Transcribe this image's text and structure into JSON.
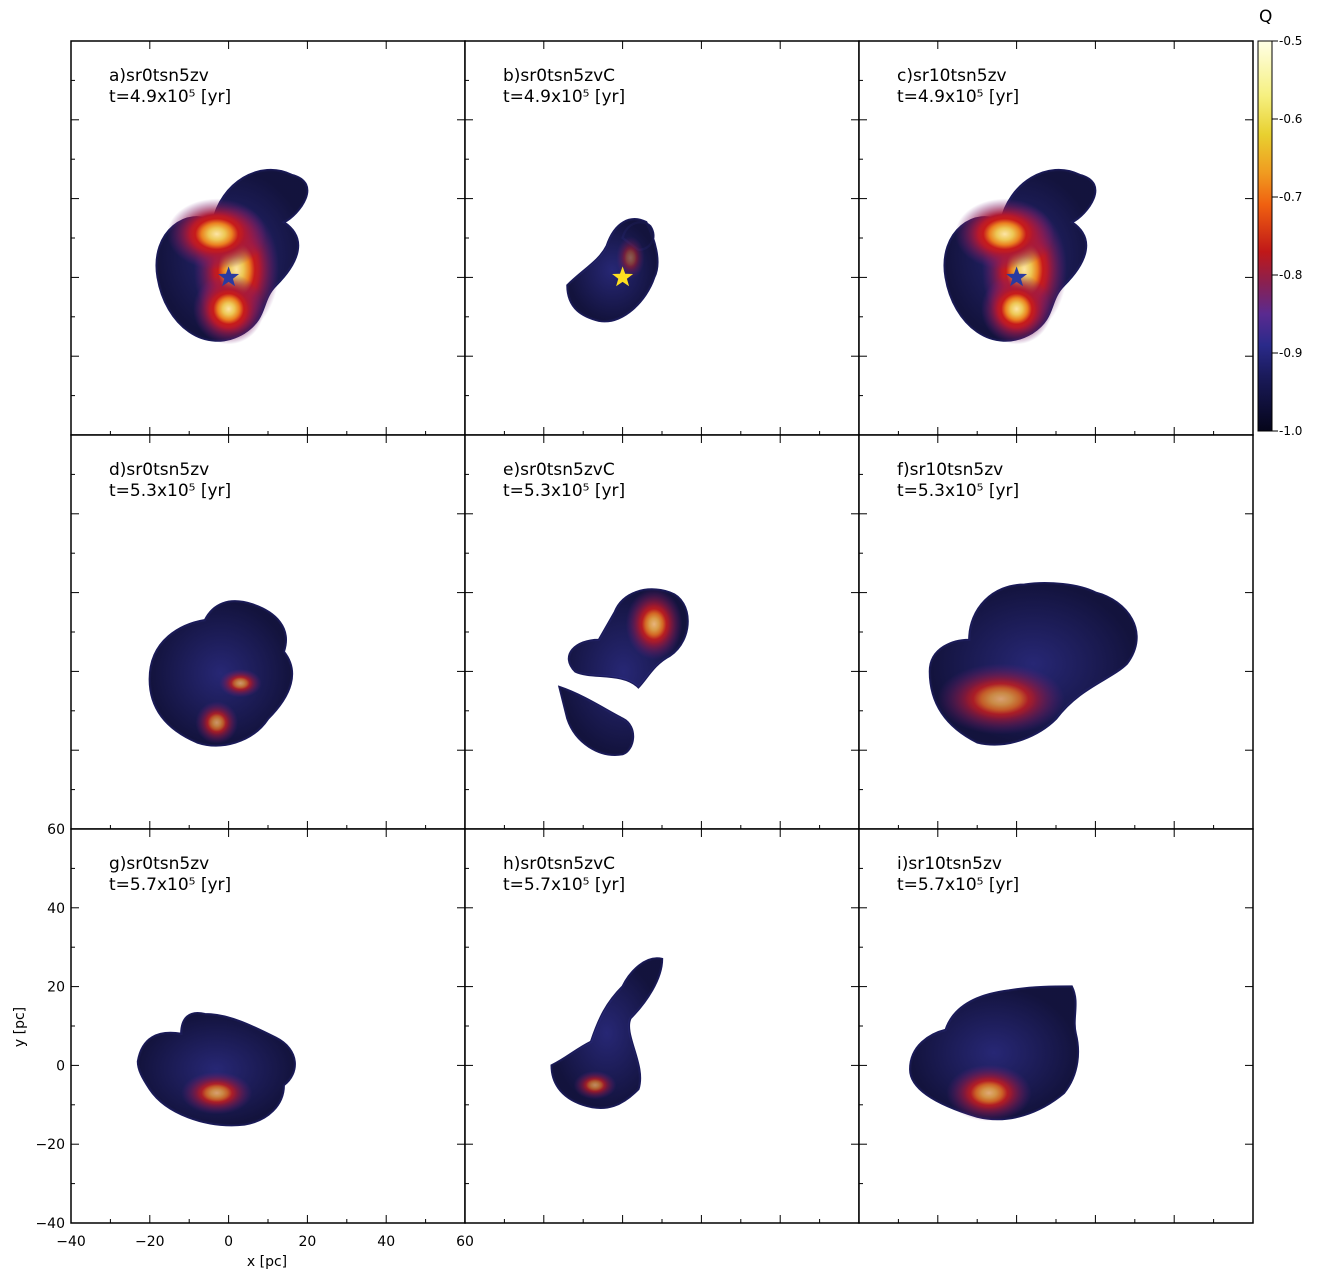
{
  "chart_data": {
    "type": "heatmap",
    "quantity_label": "Q",
    "colorbar": {
      "range": [
        -1.0,
        -0.5
      ],
      "ticks": [
        {
          "value": -0.5,
          "label": "-0.5"
        },
        {
          "value": -0.6,
          "label": "-0.6"
        },
        {
          "value": -0.7,
          "label": "-0.7"
        },
        {
          "value": -0.8,
          "label": "-0.8"
        },
        {
          "value": -0.9,
          "label": "-0.9"
        },
        {
          "value": -1.0,
          "label": "-1.0"
        }
      ],
      "colors": [
        "#05051a",
        "#2a2a8a",
        "#5a2a90",
        "#c01818",
        "#f06010",
        "#f0c020",
        "#f0f060",
        "#ffffe6"
      ]
    },
    "x_axis": {
      "label": "x [pc]",
      "range": [
        -40,
        60
      ],
      "ticks": [
        {
          "value": -40,
          "label": "−40"
        },
        {
          "value": -20,
          "label": "−20"
        },
        {
          "value": 0,
          "label": "0"
        },
        {
          "value": 20,
          "label": "20"
        },
        {
          "value": 40,
          "label": "40"
        },
        {
          "value": 60,
          "label": "60"
        }
      ]
    },
    "y_axis": {
      "label": "y [pc]",
      "range": [
        -40,
        60
      ],
      "ticks": [
        {
          "value": -40,
          "label": "−40"
        },
        {
          "value": -20,
          "label": "−20"
        },
        {
          "value": 0,
          "label": "0"
        },
        {
          "value": 20,
          "label": "20"
        },
        {
          "value": 40,
          "label": "40"
        },
        {
          "value": 60,
          "label": "60"
        }
      ]
    },
    "panels": [
      {
        "id": "a",
        "name": "a)sr0tsn5zv",
        "time": "t=4.9x10⁵ [yr]",
        "star": "blue",
        "shape": 1,
        "hot": 0.85
      },
      {
        "id": "b",
        "name": "b)sr0tsn5zvC",
        "time": "t=4.9x10⁵ [yr]",
        "star": "yellow",
        "shape": 2,
        "hot": 0.2
      },
      {
        "id": "c",
        "name": "c)sr10tsn5zv",
        "time": "t=4.9x10⁵ [yr]",
        "star": "blue",
        "shape": 1,
        "hot": 0.85
      },
      {
        "id": "d",
        "name": "d)sr0tsn5zv",
        "time": "t=5.3x10⁵ [yr]",
        "star": "",
        "shape": 3,
        "hot": 0.45
      },
      {
        "id": "e",
        "name": "e)sr0tsn5zvC",
        "time": "t=5.3x10⁵ [yr]",
        "star": "",
        "shape": 4,
        "hot": 0.6
      },
      {
        "id": "f",
        "name": "f)sr10tsn5zv",
        "time": "t=5.3x10⁵ [yr]",
        "star": "",
        "shape": 5,
        "hot": 0.5
      },
      {
        "id": "g",
        "name": "g)sr0tsn5zv",
        "time": "t=5.7x10⁵ [yr]",
        "star": "",
        "shape": 6,
        "hot": 0.5
      },
      {
        "id": "h",
        "name": "h)sr0tsn5zvC",
        "time": "t=5.7x10⁵ [yr]",
        "star": "",
        "shape": 7,
        "hot": 0.4
      },
      {
        "id": "i",
        "name": "i)sr10tsn5zv",
        "time": "t=5.7x10⁵ [yr]",
        "star": "",
        "shape": 8,
        "hot": 0.55
      }
    ]
  }
}
